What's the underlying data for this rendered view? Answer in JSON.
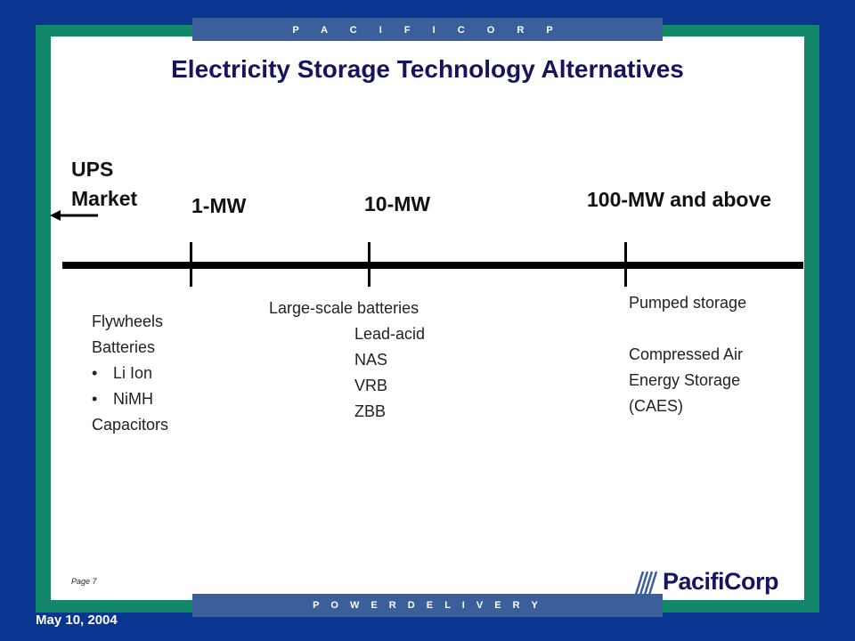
{
  "header": {
    "brand_spaced": "P A C I F I C O R P"
  },
  "footer": {
    "division_spaced": "P O W E R  D E L I V E R Y",
    "page": "Page 7",
    "date": "May 10, 2004"
  },
  "logo": {
    "text": "PacifiCorp",
    "icon": "pacificorp-logo-mark"
  },
  "slide": {
    "title": "Electricity Storage Technology Alternatives",
    "scale": {
      "ups_line1": "UPS",
      "ups_line2": "Market",
      "mw1": "1-MW",
      "mw10": "10-MW",
      "mw100": "100-MW and above"
    },
    "group_1mw": {
      "line1": "Flywheels",
      "line2": "Batteries",
      "bullet1": "Li Ion",
      "bullet2": "NiMH",
      "line3": "Capacitors",
      "bullet_glyph": "•"
    },
    "group_10mw": {
      "heading": "Large-scale batteries",
      "items": [
        "Lead-acid",
        "NAS",
        "VRB",
        "ZBB"
      ]
    },
    "group_100mw": {
      "line1": "Pumped storage",
      "line2": "Compressed Air",
      "line3": "Energy Storage",
      "line4": "(CAES)"
    }
  },
  "colors": {
    "background": "#0a3590",
    "frame": "#12876a",
    "band": "#3a5f9b",
    "title": "#16145c"
  }
}
